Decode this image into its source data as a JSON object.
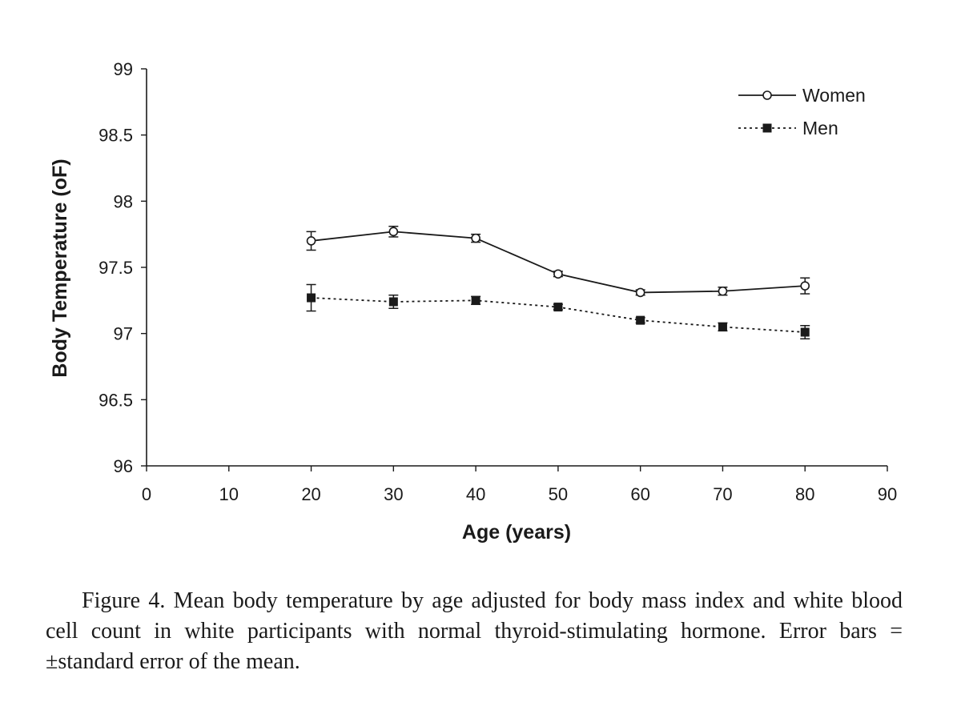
{
  "chart_data": {
    "type": "line",
    "title": "",
    "xlabel": "Age (years)",
    "ylabel": "Body Temperature (oF)",
    "xlim": [
      0,
      90
    ],
    "ylim": [
      96,
      99
    ],
    "x_ticks": [
      "0",
      "10",
      "20",
      "30",
      "40",
      "50",
      "60",
      "70",
      "80",
      "90"
    ],
    "y_ticks": [
      "96",
      "96.5",
      "97",
      "97.5",
      "98",
      "98.5",
      "99"
    ],
    "grid": false,
    "legend_position": "top-right",
    "series": [
      {
        "name": "Women",
        "marker": "open-circle",
        "line": "solid",
        "x": [
          20,
          30,
          40,
          50,
          60,
          70,
          80
        ],
        "y": [
          97.7,
          97.77,
          97.72,
          97.45,
          97.31,
          97.32,
          97.36
        ],
        "error": [
          0.07,
          0.04,
          0.03,
          0.02,
          0.02,
          0.03,
          0.06
        ]
      },
      {
        "name": "Men",
        "marker": "filled-square",
        "line": "dotted",
        "x": [
          20,
          30,
          40,
          50,
          60,
          70,
          80
        ],
        "y": [
          97.27,
          97.24,
          97.25,
          97.2,
          97.1,
          97.05,
          97.01
        ],
        "error": [
          0.1,
          0.05,
          0.03,
          0.02,
          0.02,
          0.03,
          0.05
        ]
      }
    ]
  },
  "caption": "Figure 4.  Mean body temperature by age adjusted for body mass index and white blood cell count in white participants with normal thyroid-stimulating hormone. Error bars = ±standard error of the mean."
}
